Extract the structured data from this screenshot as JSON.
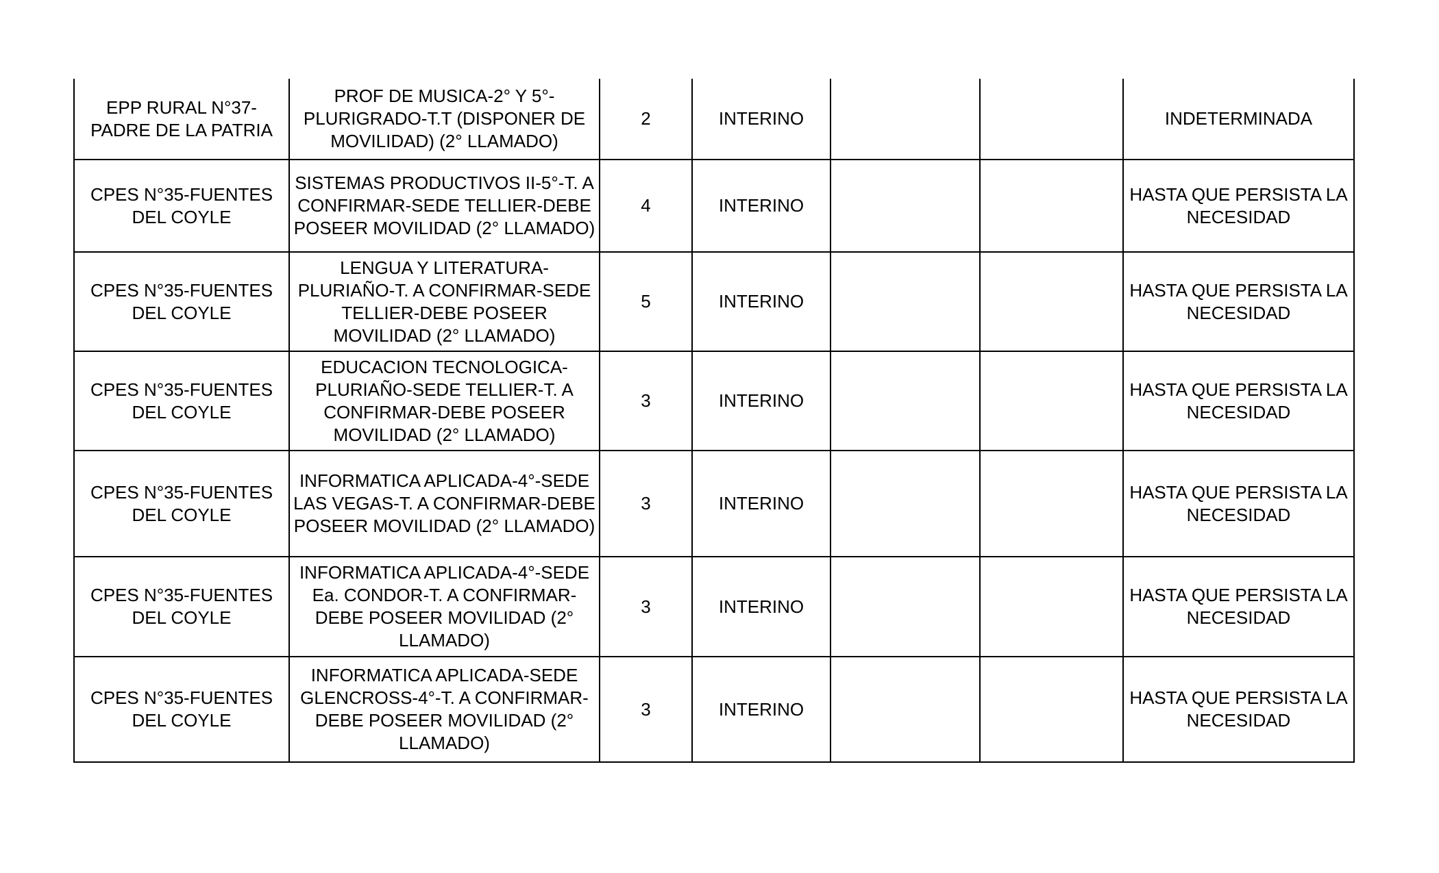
{
  "rows": [
    {
      "school": "EPP RURAL N°37-PADRE DE LA PATRIA",
      "position": "PROF DE MUSICA-2° Y 5°-PLURIGRADO-T.T (DISPONER DE MOVILIDAD) (2° LLAMADO)",
      "hours": "2",
      "status": "INTERINO",
      "col5": "",
      "col6": "",
      "duration": "INDETERMINADA"
    },
    {
      "school": "CPES N°35-FUENTES DEL COYLE",
      "position": "SISTEMAS PRODUCTIVOS II-5°-T. A CONFIRMAR-SEDE TELLIER-DEBE POSEER MOVILIDAD (2° LLAMADO)",
      "hours": "4",
      "status": "INTERINO",
      "col5": "",
      "col6": "",
      "duration": "HASTA QUE PERSISTA LA NECESIDAD"
    },
    {
      "school": "CPES N°35-FUENTES DEL COYLE",
      "position": "LENGUA Y LITERATURA-PLURIAÑO-T. A CONFIRMAR-SEDE TELLIER-DEBE POSEER MOVILIDAD (2° LLAMADO)",
      "hours": "5",
      "status": "INTERINO",
      "col5": "",
      "col6": "",
      "duration": "HASTA QUE PERSISTA LA NECESIDAD"
    },
    {
      "school": "CPES N°35-FUENTES DEL COYLE",
      "position": "EDUCACION TECNOLOGICA-PLURIAÑO-SEDE TELLIER-T. A CONFIRMAR-DEBE POSEER MOVILIDAD (2° LLAMADO)",
      "hours": "3",
      "status": "INTERINO",
      "col5": "",
      "col6": "",
      "duration": "HASTA QUE PERSISTA LA NECESIDAD"
    },
    {
      "school": "CPES N°35-FUENTES DEL COYLE",
      "position": "INFORMATICA APLICADA-4°-SEDE LAS VEGAS-T. A CONFIRMAR-DEBE POSEER MOVILIDAD (2° LLAMADO)",
      "hours": "3",
      "status": "INTERINO",
      "col5": "",
      "col6": "",
      "duration": "HASTA QUE PERSISTA LA NECESIDAD"
    },
    {
      "school": "CPES N°35-FUENTES DEL COYLE",
      "position": "INFORMATICA APLICADA-4°-SEDE Ea. CONDOR-T. A CONFIRMAR-DEBE POSEER MOVILIDAD (2° LLAMADO)",
      "hours": "3",
      "status": "INTERINO",
      "col5": "",
      "col6": "",
      "duration": "HASTA QUE PERSISTA LA NECESIDAD"
    },
    {
      "school": "CPES N°35-FUENTES DEL COYLE",
      "position": "INFORMATICA APLICADA-SEDE GLENCROSS-4°-T. A CONFIRMAR-DEBE POSEER MOVILIDAD (2° LLAMADO)",
      "hours": "3",
      "status": "INTERINO",
      "col5": "",
      "col6": "",
      "duration": "HASTA QUE PERSISTA LA NECESIDAD"
    }
  ]
}
